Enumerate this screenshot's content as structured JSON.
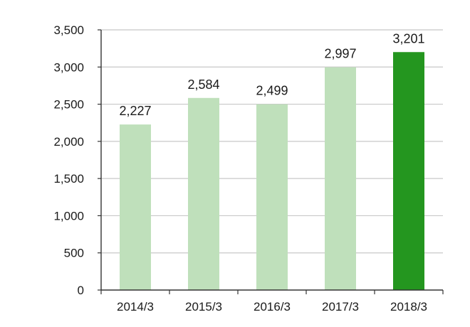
{
  "chart_data": {
    "type": "bar",
    "title": "",
    "xlabel": "",
    "ylabel": "",
    "categories": [
      "2014/3",
      "2015/3",
      "2016/3",
      "2017/3",
      "2018/3"
    ],
    "series": [
      {
        "values": [
          2227,
          2584,
          2499,
          2997,
          3201
        ],
        "data_labels": [
          "2,227",
          "2,584",
          "2,499",
          "2,997",
          "3,201"
        ],
        "colors": [
          "#bfe0bb",
          "#bfe0bb",
          "#bfe0bb",
          "#bfe0bb",
          "#24961f"
        ]
      }
    ],
    "ylim": [
      0,
      3500
    ],
    "yticks": [
      0,
      500,
      1000,
      1500,
      2000,
      2500,
      3000,
      3500
    ],
    "ytick_labels": [
      "0",
      "500",
      "1,000",
      "1,500",
      "2,000",
      "2,500",
      "3,000",
      "3,500"
    ],
    "grid": true,
    "legend": "none",
    "colors": {
      "bar_default": "#bfe0bb",
      "bar_highlight": "#24961f",
      "gridline": "#c8c8c8",
      "axis": "#333333"
    }
  }
}
